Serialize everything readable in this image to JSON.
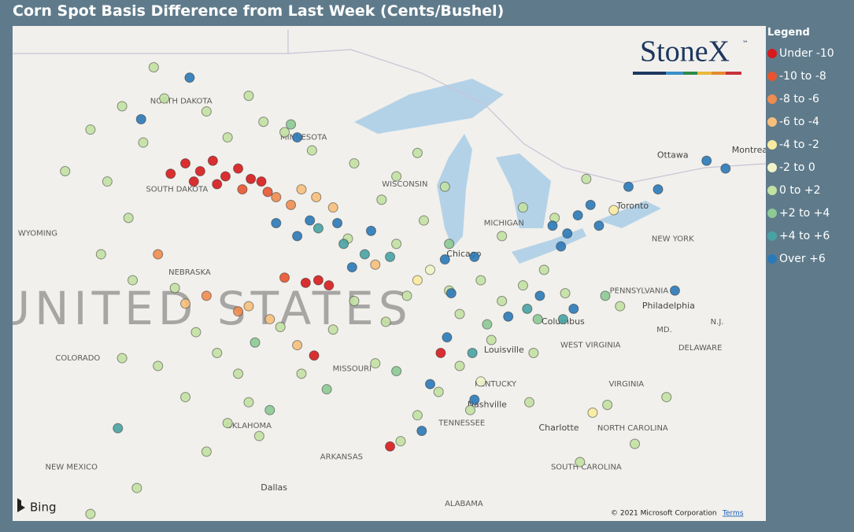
{
  "header": {
    "title": "Corn Spot Basis Difference from Last Week (Cents/Bushel)"
  },
  "legend": {
    "title": "Legend",
    "classes": [
      {
        "label": "Under -10",
        "color": "#d7191c"
      },
      {
        "label": "-10 to -8",
        "color": "#e8542f"
      },
      {
        "label": "-8 to -6",
        "color": "#ef8c50"
      },
      {
        "label": "-6 to -4",
        "color": "#f6bf7c"
      },
      {
        "label": "-4 to -2",
        "color": "#f8eba0"
      },
      {
        "label": "-2 to 0",
        "color": "#f1f4c8"
      },
      {
        "label": "0 to +2",
        "color": "#c3e1a3"
      },
      {
        "label": "+2 to +4",
        "color": "#8cc995"
      },
      {
        "label": "+4 to +6",
        "color": "#48a2a4"
      },
      {
        "label": "Over +6",
        "color": "#2b79b8"
      }
    ]
  },
  "logo": {
    "text": "StoneX",
    "mark": "™"
  },
  "map": {
    "lon_range": [
      -108.69,
      -72.99
    ],
    "lat_range": [
      31.53,
      50.59
    ],
    "country_label": "UNITED STATES",
    "country_at": [
      -99.6,
      39.6
    ],
    "places": [
      {
        "name": "NORTH DAKOTA",
        "at": [
          -100.7,
          47.7
        ]
      },
      {
        "name": "SOUTH DAKOTA",
        "at": [
          -100.9,
          44.3
        ]
      },
      {
        "name": "MINNESOTA",
        "at": [
          -94.9,
          46.3
        ]
      },
      {
        "name": "WISCONSIN",
        "at": [
          -90.1,
          44.5
        ]
      },
      {
        "name": "MICHIGAN",
        "at": [
          -85.4,
          43.0
        ]
      },
      {
        "name": "WYOMING",
        "at": [
          -107.5,
          42.6
        ]
      },
      {
        "name": "NEBRASKA",
        "at": [
          -100.3,
          41.1
        ]
      },
      {
        "name": "COLORADO",
        "at": [
          -105.6,
          37.8
        ]
      },
      {
        "name": "MISSOURI",
        "at": [
          -92.6,
          37.4
        ]
      },
      {
        "name": "KENTUCKY",
        "at": [
          -85.8,
          36.8
        ]
      },
      {
        "name": "TENNESSEE",
        "at": [
          -87.4,
          35.3
        ]
      },
      {
        "name": "OKLAHOMA",
        "at": [
          -97.5,
          35.2
        ]
      },
      {
        "name": "ARKANSAS",
        "at": [
          -93.1,
          34.0
        ]
      },
      {
        "name": "NEW MEXICO",
        "at": [
          -105.9,
          33.6
        ]
      },
      {
        "name": "ALABAMA",
        "at": [
          -87.3,
          32.2
        ]
      },
      {
        "name": "Dallas",
        "at": [
          -96.3,
          32.8
        ]
      },
      {
        "name": "Chicago",
        "at": [
          -87.3,
          41.8
        ]
      },
      {
        "name": "Columbus",
        "at": [
          -82.6,
          39.2
        ]
      },
      {
        "name": "Louisville",
        "at": [
          -85.4,
          38.1
        ]
      },
      {
        "name": "Nashville",
        "at": [
          -86.2,
          36.0
        ]
      },
      {
        "name": "Charlotte",
        "at": [
          -82.8,
          35.1
        ]
      },
      {
        "name": "WEST VIRGINIA",
        "at": [
          -81.3,
          38.3
        ]
      },
      {
        "name": "VIRGINIA",
        "at": [
          -79.6,
          36.8
        ]
      },
      {
        "name": "NORTH CAROLINA",
        "at": [
          -79.3,
          35.1
        ]
      },
      {
        "name": "SOUTH CAROLINA",
        "at": [
          -81.5,
          33.6
        ]
      },
      {
        "name": "PENNSYLVANIA",
        "at": [
          -79.0,
          40.4
        ]
      },
      {
        "name": "NEW YORK",
        "at": [
          -77.4,
          42.4
        ]
      },
      {
        "name": "Toronto",
        "at": [
          -79.3,
          43.65
        ]
      },
      {
        "name": "Ottawa",
        "at": [
          -77.4,
          45.6
        ]
      },
      {
        "name": "Philadelphia",
        "at": [
          -77.6,
          39.8
        ]
      },
      {
        "name": "MD.",
        "at": [
          -77.8,
          38.9
        ]
      },
      {
        "name": "DELAWARE",
        "at": [
          -76.1,
          38.2
        ]
      },
      {
        "name": "N.J.",
        "at": [
          -75.3,
          39.2
        ]
      },
      {
        "name": "Montreal",
        "at": [
          -73.7,
          45.8
        ]
      }
    ],
    "points": [
      [
        -100.5,
        45.3,
        0
      ],
      [
        -99.8,
        45.0,
        0
      ],
      [
        -99.2,
        45.4,
        0
      ],
      [
        -98.6,
        44.8,
        0
      ],
      [
        -98.0,
        45.1,
        0
      ],
      [
        -97.4,
        44.7,
        0
      ],
      [
        -96.9,
        44.6,
        0
      ],
      [
        -101.2,
        44.9,
        0
      ],
      [
        -100.1,
        44.6,
        0
      ],
      [
        -99.0,
        44.5,
        0
      ],
      [
        -94.8,
        40.7,
        0
      ],
      [
        -94.2,
        40.8,
        0
      ],
      [
        -93.7,
        40.6,
        0
      ],
      [
        -94.4,
        37.9,
        0
      ],
      [
        -88.4,
        38.0,
        0
      ],
      [
        -90.8,
        34.4,
        0
      ],
      [
        -97.8,
        44.3,
        1
      ],
      [
        -96.6,
        44.2,
        1
      ],
      [
        -95.8,
        40.9,
        1
      ],
      [
        -96.2,
        44.0,
        2
      ],
      [
        -95.5,
        43.7,
        2
      ],
      [
        -99.5,
        40.2,
        2
      ],
      [
        -98.0,
        39.6,
        2
      ],
      [
        -101.8,
        41.8,
        2
      ],
      [
        -95.0,
        44.3,
        3
      ],
      [
        -94.3,
        44.0,
        3
      ],
      [
        -93.5,
        43.6,
        3
      ],
      [
        -97.5,
        39.8,
        3
      ],
      [
        -96.5,
        39.3,
        3
      ],
      [
        -91.5,
        41.4,
        3
      ],
      [
        -100.5,
        39.9,
        3
      ],
      [
        -95.2,
        38.3,
        3
      ],
      [
        -89.5,
        40.8,
        4
      ],
      [
        -80.2,
        43.5,
        4
      ],
      [
        -81.2,
        35.7,
        4
      ],
      [
        -88.9,
        41.2,
        5
      ],
      [
        -86.5,
        36.9,
        5
      ],
      [
        -105.0,
        46.6,
        6
      ],
      [
        -103.5,
        47.5,
        6
      ],
      [
        -101.5,
        47.8,
        6
      ],
      [
        -99.5,
        47.3,
        6
      ],
      [
        -97.5,
        47.9,
        6
      ],
      [
        -96.8,
        46.9,
        6
      ],
      [
        -98.5,
        46.3,
        6
      ],
      [
        -102.5,
        46.1,
        6
      ],
      [
        -95.8,
        46.5,
        6
      ],
      [
        -94.5,
        45.8,
        6
      ],
      [
        -92.5,
        45.3,
        6
      ],
      [
        -90.5,
        44.8,
        6
      ],
      [
        -89.5,
        45.7,
        6
      ],
      [
        -88.2,
        44.4,
        6
      ],
      [
        -104.2,
        44.6,
        6
      ],
      [
        -103.2,
        43.2,
        6
      ],
      [
        -104.5,
        41.8,
        6
      ],
      [
        -103.0,
        40.8,
        6
      ],
      [
        -101.0,
        40.5,
        6
      ],
      [
        -100.0,
        38.8,
        6
      ],
      [
        -99.0,
        38.0,
        6
      ],
      [
        -98.0,
        37.2,
        6
      ],
      [
        -101.8,
        37.5,
        6
      ],
      [
        -103.5,
        37.8,
        6
      ],
      [
        -100.5,
        36.3,
        6
      ],
      [
        -97.5,
        36.1,
        6
      ],
      [
        -98.5,
        35.3,
        6
      ],
      [
        -97.0,
        34.8,
        6
      ],
      [
        -99.5,
        34.2,
        6
      ],
      [
        -96.0,
        39.0,
        6
      ],
      [
        -95.0,
        37.2,
        6
      ],
      [
        -93.5,
        38.9,
        6
      ],
      [
        -92.5,
        40.0,
        6
      ],
      [
        -91.0,
        39.2,
        6
      ],
      [
        -90.0,
        40.2,
        6
      ],
      [
        -88.0,
        40.4,
        6
      ],
      [
        -87.5,
        39.5,
        6
      ],
      [
        -86.5,
        40.8,
        6
      ],
      [
        -85.5,
        40.0,
        6
      ],
      [
        -84.5,
        40.6,
        6
      ],
      [
        -83.5,
        41.2,
        6
      ],
      [
        -82.5,
        40.3,
        6
      ],
      [
        -86.0,
        38.5,
        6
      ],
      [
        -84.0,
        38.0,
        6
      ],
      [
        -87.5,
        37.5,
        6
      ],
      [
        -88.5,
        36.5,
        6
      ],
      [
        -89.5,
        35.6,
        6
      ],
      [
        -87.0,
        35.8,
        6
      ],
      [
        -85.5,
        42.5,
        6
      ],
      [
        -84.5,
        43.6,
        6
      ],
      [
        -83.0,
        43.2,
        6
      ],
      [
        -89.2,
        43.1,
        6
      ],
      [
        -91.2,
        43.9,
        6
      ],
      [
        -92.8,
        42.4,
        6
      ],
      [
        -90.5,
        42.2,
        6
      ],
      [
        -91.5,
        37.6,
        6
      ],
      [
        -90.3,
        34.6,
        6
      ],
      [
        -102.8,
        32.8,
        6
      ],
      [
        -105.0,
        31.8,
        6
      ],
      [
        -106.2,
        45.0,
        6
      ],
      [
        -84.2,
        36.1,
        6
      ],
      [
        -80.5,
        36.0,
        6
      ],
      [
        -77.7,
        36.3,
        6
      ],
      [
        -79.2,
        34.5,
        6
      ],
      [
        -81.8,
        33.8,
        6
      ],
      [
        -79.9,
        39.8,
        6
      ],
      [
        -81.5,
        44.7,
        6
      ],
      [
        -102.0,
        49.0,
        6
      ],
      [
        -95.5,
        46.8,
        7
      ],
      [
        -97.2,
        38.4,
        7
      ],
      [
        -96.5,
        35.8,
        7
      ],
      [
        -86.2,
        39.1,
        7
      ],
      [
        -83.8,
        39.3,
        7
      ],
      [
        -80.6,
        40.2,
        7
      ],
      [
        -88.0,
        42.2,
        7
      ],
      [
        -90.5,
        37.3,
        7
      ],
      [
        -93.8,
        36.6,
        7
      ],
      [
        -94.2,
        42.8,
        8
      ],
      [
        -93.0,
        42.2,
        8
      ],
      [
        -92.0,
        41.8,
        8
      ],
      [
        -90.8,
        41.7,
        8
      ],
      [
        -84.3,
        39.7,
        8
      ],
      [
        -82.6,
        39.3,
        8
      ],
      [
        -86.9,
        38.0,
        8
      ],
      [
        -103.7,
        35.1,
        8
      ],
      [
        -96.2,
        43.0,
        9
      ],
      [
        -95.2,
        42.5,
        9
      ],
      [
        -94.6,
        43.1,
        9
      ],
      [
        -93.3,
        43.0,
        9
      ],
      [
        -92.6,
        41.3,
        9
      ],
      [
        -91.7,
        42.7,
        9
      ],
      [
        -88.2,
        41.6,
        9
      ],
      [
        -87.9,
        40.3,
        9
      ],
      [
        -86.8,
        41.7,
        9
      ],
      [
        -85.2,
        39.4,
        9
      ],
      [
        -83.7,
        40.2,
        9
      ],
      [
        -82.1,
        39.7,
        9
      ],
      [
        -83.1,
        42.9,
        9
      ],
      [
        -82.4,
        42.6,
        9
      ],
      [
        -81.9,
        43.3,
        9
      ],
      [
        -81.3,
        43.7,
        9
      ],
      [
        -80.9,
        42.9,
        9
      ],
      [
        -82.7,
        42.1,
        9
      ],
      [
        -79.5,
        44.4,
        9
      ],
      [
        -78.1,
        44.3,
        9
      ],
      [
        -75.8,
        45.4,
        9
      ],
      [
        -74.9,
        45.1,
        9
      ],
      [
        -77.3,
        40.4,
        9
      ],
      [
        -95.2,
        46.3,
        9
      ],
      [
        -100.3,
        48.6,
        9
      ],
      [
        -102.6,
        47.0,
        9
      ],
      [
        -88.1,
        38.6,
        9
      ],
      [
        -88.9,
        36.8,
        9
      ],
      [
        -86.8,
        36.2,
        9
      ],
      [
        -89.3,
        35.0,
        9
      ]
    ]
  },
  "footer": {
    "bing": "Bing",
    "copyright": "© 2021 Microsoft Corporation",
    "terms": "Terms"
  }
}
